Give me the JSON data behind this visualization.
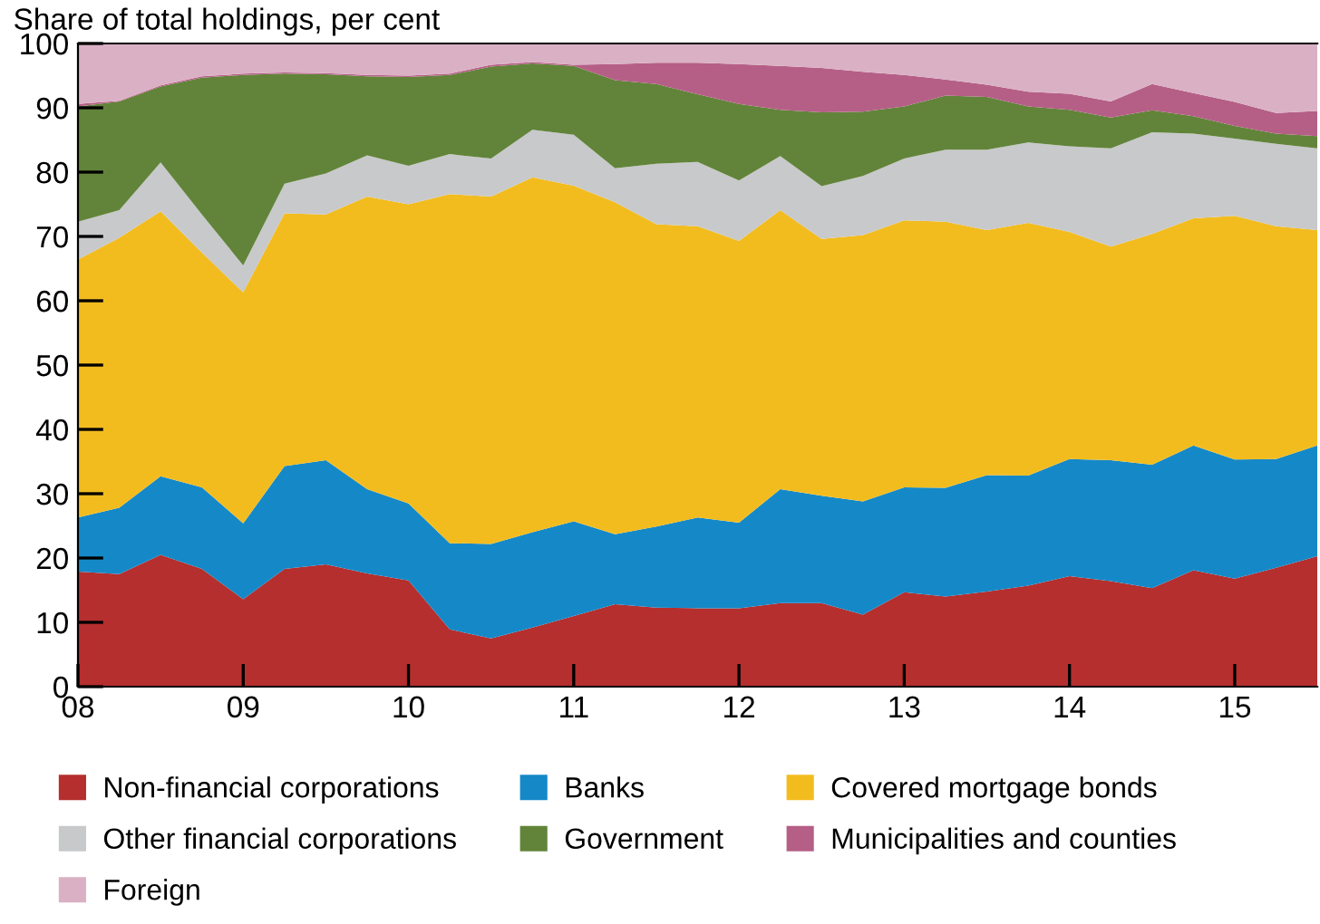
{
  "chart_data": {
    "type": "area",
    "stacked": true,
    "ylabel": "Share of total holdings, per cent",
    "x": [
      8,
      8.25,
      8.5,
      8.75,
      9,
      9.25,
      9.5,
      9.75,
      10,
      10.25,
      10.5,
      10.75,
      11,
      11.25,
      11.5,
      11.75,
      12,
      12.25,
      12.5,
      12.75,
      13,
      13.25,
      13.5,
      13.75,
      14,
      14.25,
      14.5,
      14.75,
      15,
      15.25,
      15.5
    ],
    "xlim": [
      8,
      15.5
    ],
    "xticks": [
      {
        "value": 8,
        "label": "08"
      },
      {
        "value": 9,
        "label": "09"
      },
      {
        "value": 10,
        "label": "10"
      },
      {
        "value": 11,
        "label": "11"
      },
      {
        "value": 12,
        "label": "12"
      },
      {
        "value": 13,
        "label": "13"
      },
      {
        "value": 14,
        "label": "14"
      },
      {
        "value": 15,
        "label": "15"
      }
    ],
    "ylim": [
      0,
      100
    ],
    "yticks": [
      0,
      10,
      20,
      30,
      40,
      50,
      60,
      70,
      80,
      90,
      100
    ],
    "grid": false,
    "legend": "bottom",
    "series": [
      {
        "name": "Non-financial corporations",
        "color": "#b52f2e",
        "values": [
          17.9,
          17.5,
          20.5,
          18.3,
          13.6,
          18.3,
          19.0,
          17.6,
          16.5,
          8.9,
          7.5,
          9.2,
          11.0,
          12.8,
          12.3,
          12.2,
          12.2,
          13.0,
          13.0,
          11.2,
          14.7,
          14.0,
          14.8,
          15.7,
          17.2,
          16.4,
          15.3,
          18.1,
          16.8,
          18.5,
          20.3
        ]
      },
      {
        "name": "Banks",
        "color": "#1589c8",
        "values": [
          8.4,
          10.3,
          12.2,
          12.7,
          11.8,
          16.0,
          16.2,
          13.1,
          12.0,
          13.4,
          14.7,
          14.8,
          14.7,
          10.9,
          12.6,
          14.1,
          13.3,
          17.7,
          16.7,
          17.6,
          16.3,
          16.9,
          18.1,
          17.1,
          18.2,
          18.8,
          19.2,
          19.4,
          18.5,
          16.9,
          17.2
        ]
      },
      {
        "name": "Covered mortgage bonds",
        "color": "#f2bc1f",
        "values": [
          40.1,
          42.0,
          41.2,
          36.5,
          35.9,
          39.3,
          38.2,
          45.5,
          46.5,
          54.3,
          54.0,
          55.2,
          52.2,
          51.6,
          47.0,
          45.3,
          43.8,
          43.4,
          39.9,
          41.4,
          41.5,
          41.4,
          38.1,
          39.3,
          35.3,
          33.2,
          35.9,
          35.3,
          37.9,
          36.2,
          33.5
        ]
      },
      {
        "name": "Other financial corporations",
        "color": "#c8c9cb",
        "values": [
          5.9,
          4.3,
          7.6,
          5.9,
          4.2,
          4.6,
          6.4,
          6.4,
          6.0,
          6.2,
          5.9,
          7.4,
          7.9,
          5.3,
          9.4,
          10.0,
          9.4,
          8.4,
          8.2,
          9.2,
          9.6,
          11.2,
          12.5,
          12.5,
          13.3,
          15.3,
          15.8,
          13.2,
          12.0,
          12.8,
          12.7
        ]
      },
      {
        "name": "Government",
        "color": "#62843a",
        "values": [
          17.9,
          16.9,
          11.8,
          21.3,
          29.6,
          17.1,
          15.4,
          12.3,
          13.8,
          12.3,
          14.3,
          10.3,
          10.7,
          13.7,
          12.4,
          10.5,
          11.9,
          7.2,
          11.5,
          10.0,
          8.1,
          8.4,
          8.2,
          5.6,
          5.7,
          4.8,
          3.4,
          2.7,
          2.0,
          1.6,
          1.9
        ]
      },
      {
        "name": "Municipalities and counties",
        "color": "#b55f87",
        "values": [
          0.4,
          0.1,
          0.2,
          0.2,
          0.2,
          0.2,
          0.2,
          0.2,
          0.2,
          0.2,
          0.3,
          0.2,
          0.2,
          2.5,
          3.3,
          4.9,
          6.2,
          6.8,
          6.9,
          6.2,
          4.9,
          2.5,
          1.9,
          2.3,
          2.5,
          2.5,
          4.1,
          3.6,
          3.7,
          3.2,
          3.9
        ]
      },
      {
        "name": "Foreign",
        "color": "#dab1c4",
        "values": [
          9.4,
          8.9,
          6.5,
          5.1,
          4.7,
          4.5,
          4.6,
          4.9,
          5.0,
          4.7,
          3.3,
          2.9,
          3.3,
          3.2,
          3.0,
          3.0,
          3.2,
          3.5,
          3.8,
          4.4,
          4.9,
          5.6,
          6.4,
          7.5,
          7.8,
          9.0,
          6.3,
          7.7,
          9.1,
          10.8,
          10.5
        ]
      }
    ]
  }
}
